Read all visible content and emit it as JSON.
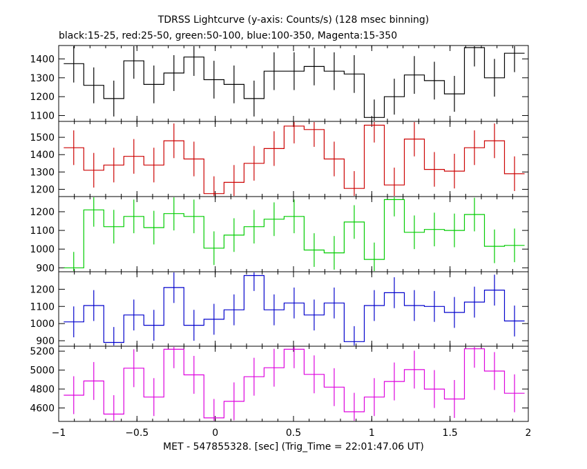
{
  "title": "TDRSS Lightcurve (y-axis: Counts/s) (128 msec binning)",
  "subtitle": "black:15-25, red:25-50, green:50-100, blue:100-350, Magenta:15-350",
  "xlabel": "MET - 547855328. [sec] (Trig_Time = 22:01:47.06 UT)",
  "chart_data": {
    "type": "line",
    "style": "step histogram with vertical error bars",
    "title": "TDRSS Lightcurve (y-axis: Counts/s) (128 msec binning)",
    "subtitle": "black:15-25, red:25-50, green:50-100, blue:100-350, Magenta:15-350",
    "xlabel": "MET - 547855328. [sec] (Trig_Time = 22:01:47.06 UT)",
    "xlim": [
      -1,
      2
    ],
    "x_ticks": [
      -1,
      -0.5,
      0,
      0.5,
      1,
      1.5,
      2
    ],
    "x_tick_labels": [
      "−1",
      "−0.5",
      "0",
      "0.5",
      "1",
      "1.5",
      "2"
    ],
    "x_bin_edges": [
      -0.968,
      -0.84,
      -0.712,
      -0.584,
      -0.456,
      -0.328,
      -0.2,
      -0.072,
      0.056,
      0.184,
      0.312,
      0.44,
      0.568,
      0.696,
      0.824,
      0.952,
      1.08,
      1.208,
      1.336,
      1.464,
      1.592,
      1.72,
      1.848,
      1.976
    ],
    "panels": [
      {
        "name": "black:15-25",
        "color": "#000000",
        "ylim": [
          1080,
          1460
        ],
        "yticks": [
          1100,
          1200,
          1300,
          1400
        ],
        "values": [
          1375,
          1260,
          1190,
          1390,
          1265,
          1325,
          1410,
          1290,
          1265,
          1190,
          1335,
          1335,
          1360,
          1335,
          1320,
          1090,
          1200,
          1315,
          1285,
          1215,
          1460,
          1300,
          1430
        ],
        "errors": [
          100,
          95,
          95,
          95,
          100,
          95,
          100,
          100,
          100,
          95,
          100,
          100,
          100,
          100,
          100,
          95,
          95,
          100,
          100,
          95,
          100,
          100,
          100
        ]
      },
      {
        "name": "red:25-50",
        "color": "#cc0000",
        "ylim": [
          1170,
          1580
        ],
        "yticks": [
          1200,
          1300,
          1400,
          1500
        ],
        "values": [
          1440,
          1310,
          1340,
          1390,
          1340,
          1480,
          1375,
          1175,
          1240,
          1350,
          1435,
          1565,
          1545,
          1375,
          1205,
          1570,
          1225,
          1490,
          1315,
          1305,
          1440,
          1480,
          1290
        ],
        "errors": [
          100,
          100,
          100,
          100,
          100,
          100,
          100,
          100,
          100,
          100,
          100,
          100,
          100,
          100,
          100,
          100,
          100,
          100,
          100,
          100,
          100,
          100,
          100
        ]
      },
      {
        "name": "green:50-100",
        "color": "#00cc00",
        "ylim": [
          890,
          1270
        ],
        "yticks": [
          900,
          1000,
          1100,
          1200
        ],
        "values": [
          900,
          1210,
          1120,
          1175,
          1115,
          1190,
          1175,
          1005,
          1075,
          1120,
          1160,
          1175,
          995,
          980,
          1145,
          945,
          1265,
          1090,
          1105,
          1100,
          1185,
          1015,
          1020
        ],
        "errors": [
          85,
          90,
          90,
          90,
          90,
          90,
          90,
          90,
          90,
          90,
          90,
          90,
          90,
          90,
          90,
          90,
          90,
          90,
          90,
          90,
          90,
          90,
          90
        ]
      },
      {
        "name": "blue:100-350",
        "color": "#0000cc",
        "ylim": [
          880,
          1290
        ],
        "yticks": [
          900,
          1000,
          1100,
          1200
        ],
        "values": [
          1010,
          1105,
          890,
          1050,
          990,
          1210,
          990,
          1025,
          1080,
          1280,
          1080,
          1120,
          1050,
          1120,
          895,
          1105,
          1180,
          1105,
          1100,
          1065,
          1125,
          1195,
          1015
        ],
        "errors": [
          90,
          90,
          90,
          90,
          90,
          90,
          90,
          90,
          90,
          90,
          90,
          90,
          90,
          90,
          90,
          90,
          90,
          90,
          90,
          90,
          90,
          90,
          90
        ]
      },
      {
        "name": "Magenta:15-350",
        "color": "#dd00dd",
        "ylim": [
          4480,
          5230
        ],
        "yticks": [
          4600,
          4800,
          5000,
          5200
        ],
        "values": [
          4735,
          4885,
          4535,
          5020,
          4715,
          5220,
          4950,
          4495,
          4670,
          4930,
          5025,
          5220,
          4955,
          4820,
          4560,
          4715,
          4880,
          5005,
          4800,
          4695,
          5225,
          4990,
          4755
        ],
        "errors": [
          200,
          200,
          200,
          200,
          200,
          200,
          200,
          200,
          200,
          200,
          200,
          200,
          200,
          200,
          200,
          200,
          200,
          200,
          200,
          200,
          200,
          200,
          200
        ]
      }
    ]
  }
}
